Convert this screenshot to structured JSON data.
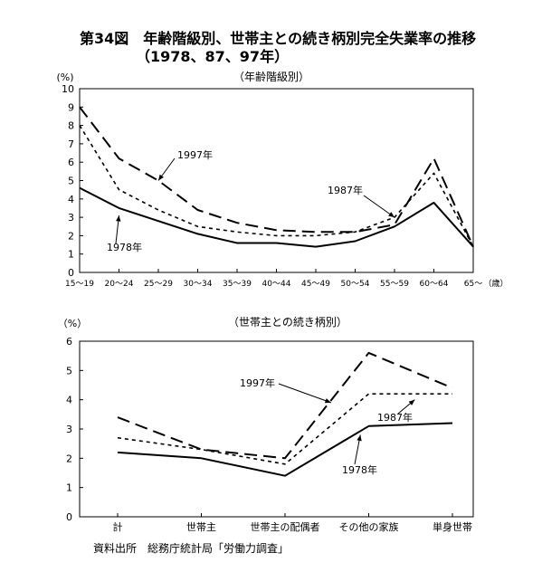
{
  "title": {
    "line1": "第34図　年齢階級別、世帯主との続き柄別完全失業率の推移",
    "line2": "（1978、87、97年）"
  },
  "source": "資料出所　総務庁統計局「労働力調査」",
  "colors": {
    "lines": "#000000",
    "background": "#ffffff"
  },
  "chart_data": [
    {
      "type": "line",
      "title": "（年齢階級別）",
      "ylabel": "(%)",
      "xlabel": "",
      "x_unit": "（歳）",
      "ylim": [
        0,
        10
      ],
      "yticks": [
        0,
        1,
        2,
        3,
        4,
        5,
        6,
        7,
        8,
        9,
        10
      ],
      "categories": [
        "15～19",
        "20～24",
        "25～29",
        "30～34",
        "35～39",
        "40～44",
        "45～49",
        "50～54",
        "55～59",
        "60～64",
        "65～"
      ],
      "series": [
        {
          "name": "1997年",
          "style": "long-dash",
          "values": [
            9.0,
            6.2,
            5.0,
            3.4,
            2.7,
            2.3,
            2.2,
            2.2,
            2.6,
            6.2,
            1.4
          ]
        },
        {
          "name": "1987年",
          "style": "short-dash",
          "values": [
            8.0,
            4.5,
            3.4,
            2.5,
            2.2,
            2.0,
            2.0,
            2.2,
            3.0,
            5.4,
            1.4
          ]
        },
        {
          "name": "1978年",
          "style": "solid",
          "values": [
            4.6,
            3.5,
            2.8,
            2.1,
            1.6,
            1.6,
            1.4,
            1.7,
            2.5,
            3.8,
            1.4
          ]
        }
      ],
      "grid": false,
      "legend": "inline labels"
    },
    {
      "type": "line",
      "title": "（世帯主との続き柄別）",
      "ylabel": "（%）",
      "xlabel": "",
      "ylim": [
        0,
        6
      ],
      "yticks": [
        0,
        1,
        2,
        3,
        4,
        5,
        6
      ],
      "categories": [
        "計",
        "世帯主",
        "世帯主の配偶者",
        "その他の家族",
        "単身世帯"
      ],
      "series": [
        {
          "name": "1997年",
          "style": "long-dash",
          "values": [
            3.4,
            2.3,
            2.0,
            5.6,
            4.4
          ]
        },
        {
          "name": "1987年",
          "style": "short-dash",
          "values": [
            2.7,
            2.3,
            1.8,
            4.2,
            4.2
          ]
        },
        {
          "name": "1978年",
          "style": "solid",
          "values": [
            2.2,
            2.0,
            1.4,
            3.1,
            3.2
          ]
        }
      ],
      "grid": false,
      "legend": "inline labels"
    }
  ]
}
